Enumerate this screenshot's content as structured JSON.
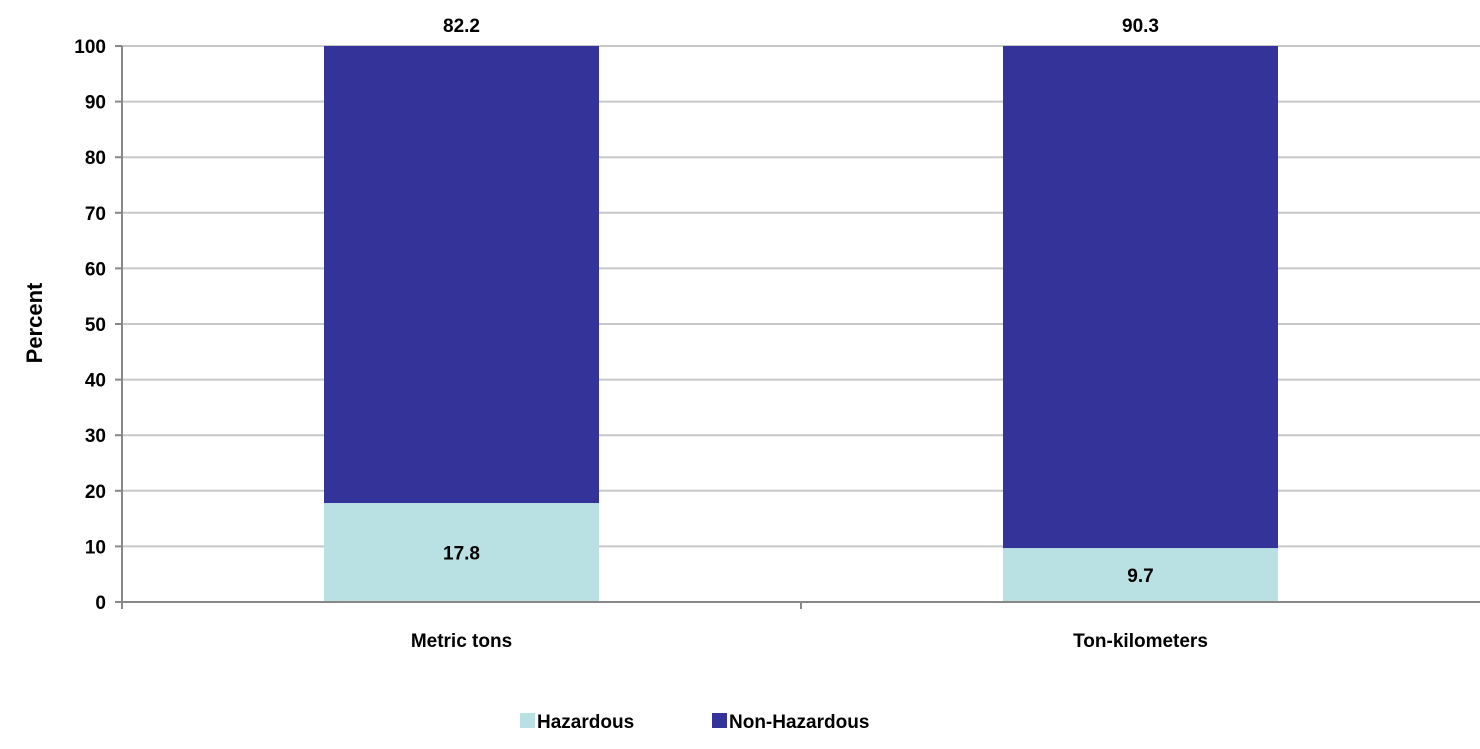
{
  "chart_data": {
    "type": "bar",
    "stacked": true,
    "title": "",
    "xlabel": "",
    "ylabel": "Percent",
    "ylim": [
      0,
      100
    ],
    "yticks": [
      0,
      10,
      20,
      30,
      40,
      50,
      60,
      70,
      80,
      90,
      100
    ],
    "categories": [
      "Metric tons",
      "Ton-kilometers"
    ],
    "series": [
      {
        "name": "Hazardous",
        "values": [
          17.8,
          9.7
        ],
        "labels": [
          "17.8",
          "9.7"
        ],
        "color": "#b9e1e4"
      },
      {
        "name": "Non-Hazardous",
        "values": [
          82.2,
          90.3
        ],
        "labels": [
          "82.2",
          "90.3"
        ],
        "color": "#333399"
      }
    ],
    "grid": true,
    "gridline_color": "#c8c8c8",
    "legend_position": "bottom"
  }
}
